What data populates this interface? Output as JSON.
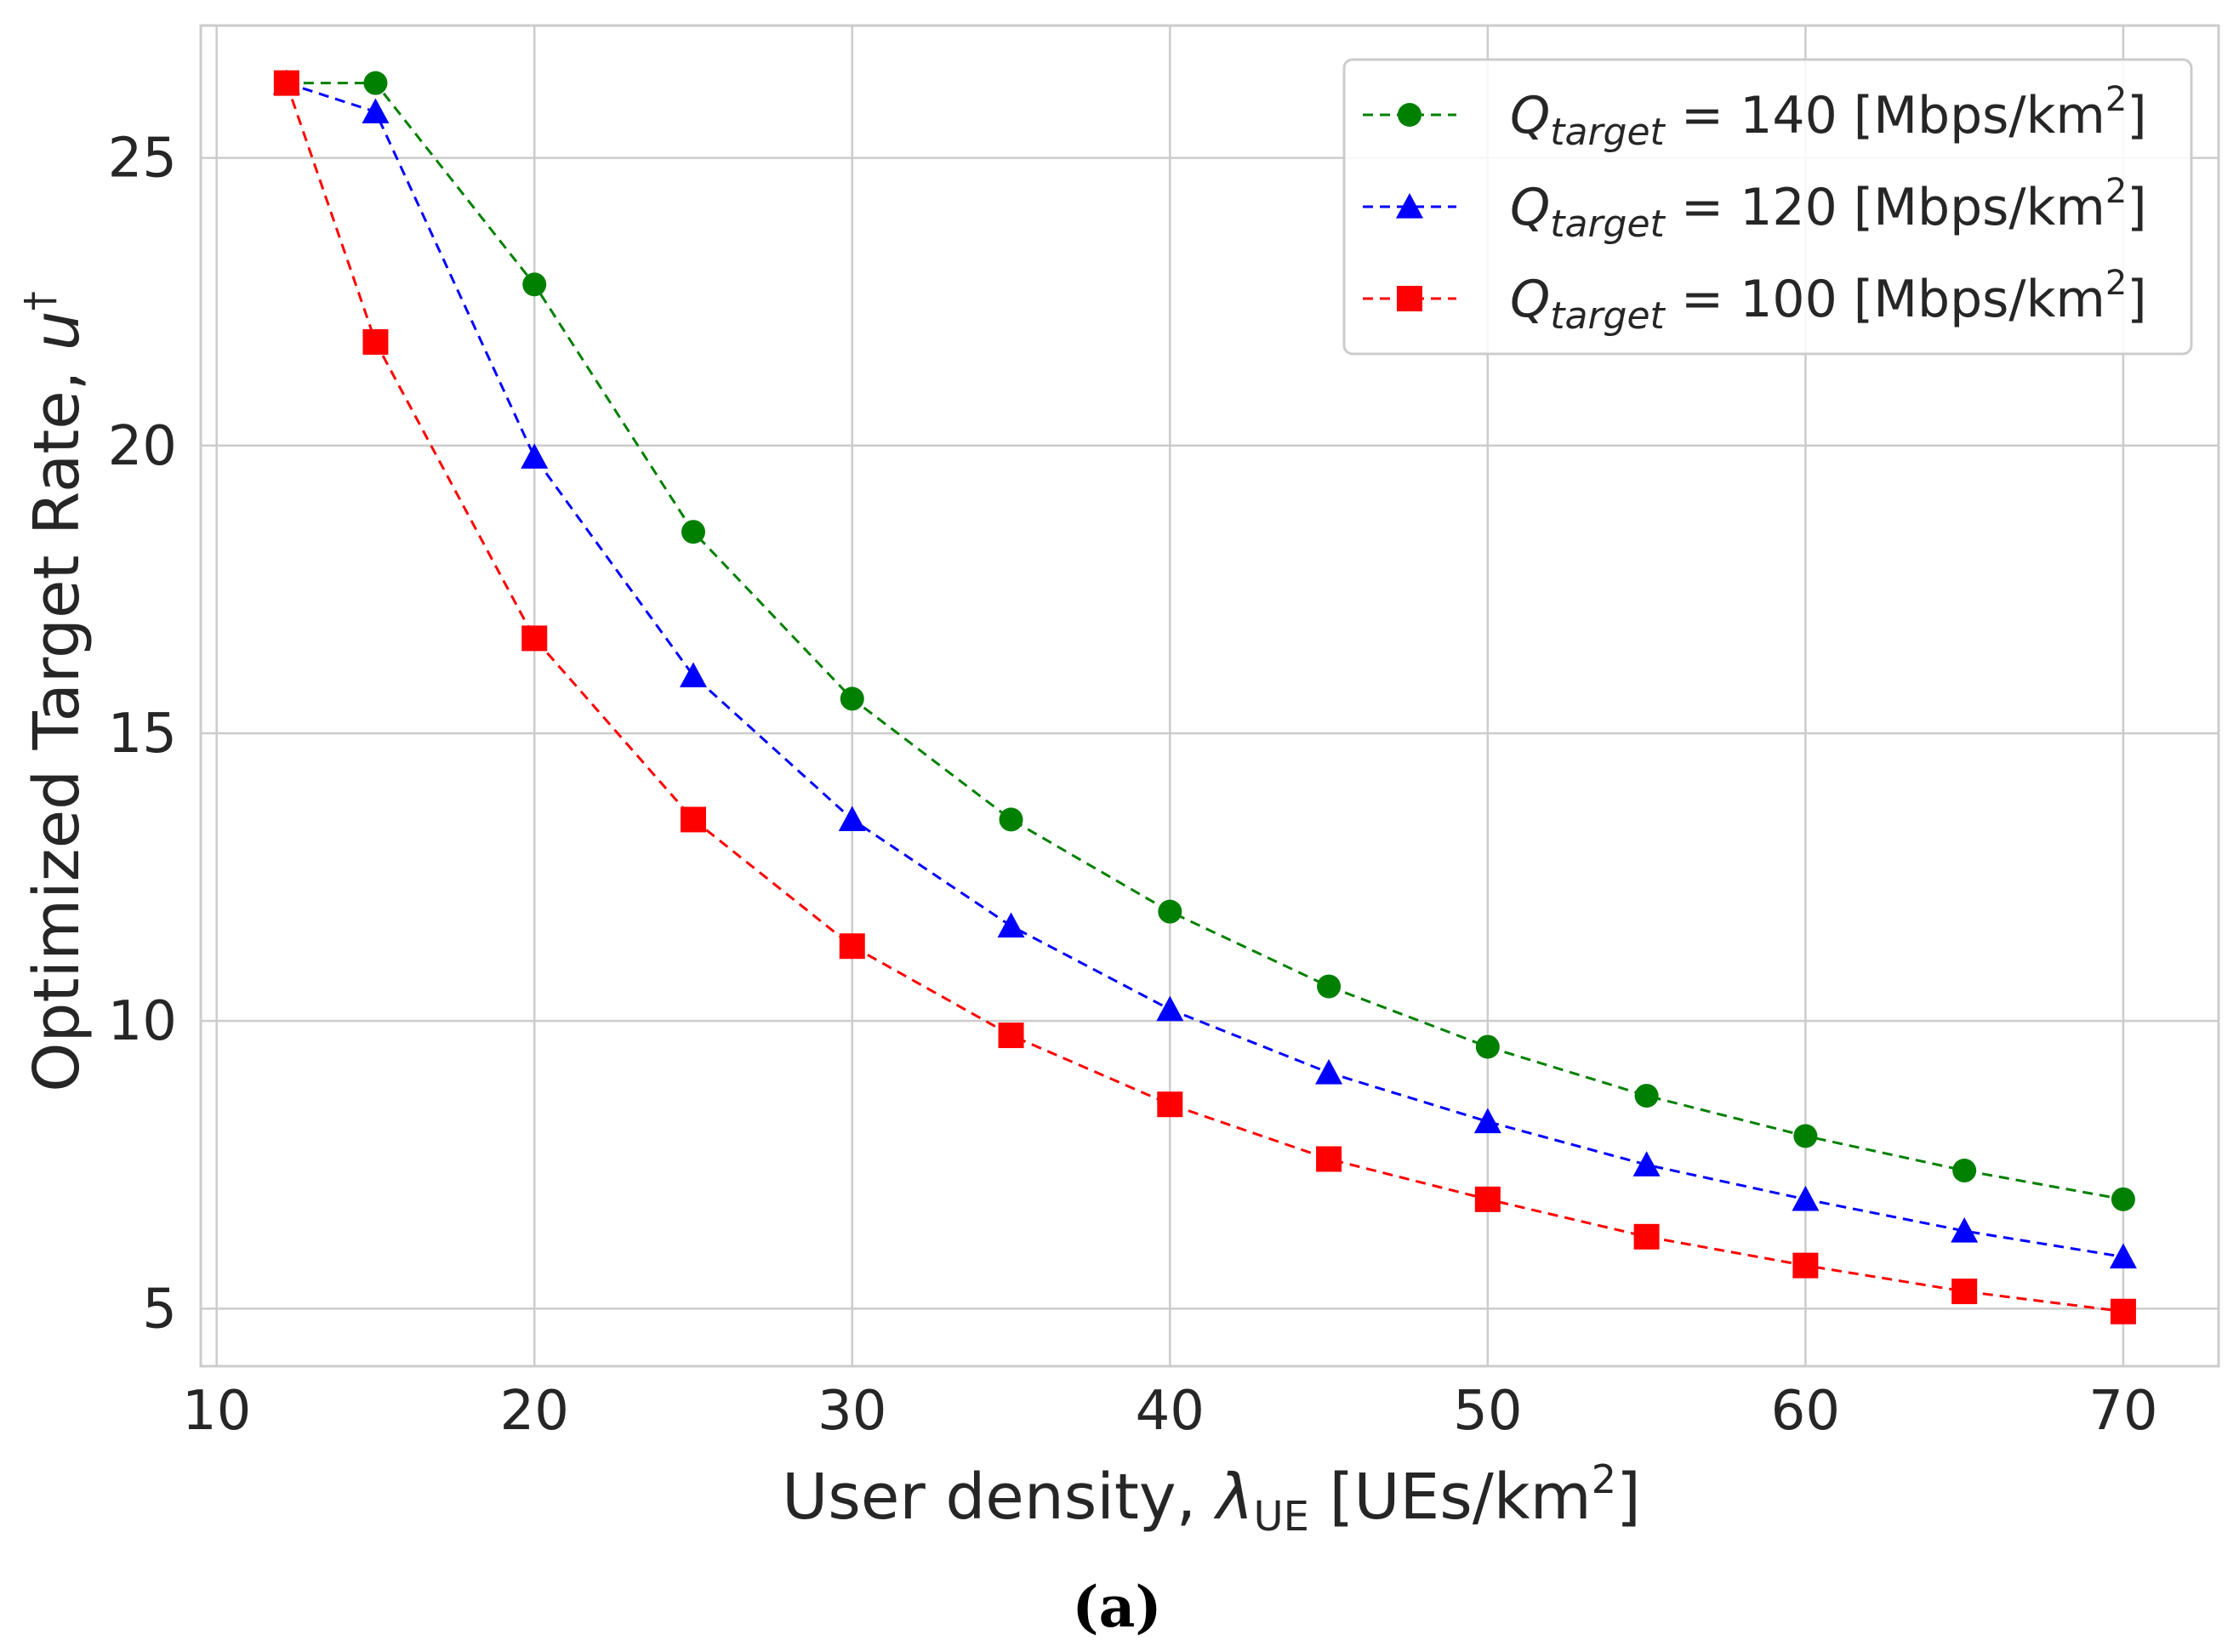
{
  "chart_data": {
    "type": "line",
    "xlabel": "User density, λUE [UEs/km2]",
    "xlabel_parts": {
      "main": "User density, ",
      "symbol": "λ",
      "subscript": "UE",
      "units_open": " [UEs/km",
      "units_sup": "2",
      "units_close": "]"
    },
    "ylabel": "Optimized Target Rate, u†",
    "ylabel_parts": {
      "main": "Optimized Target Rate, ",
      "symbol": "u",
      "sup": "†"
    },
    "xlim": [
      9.5,
      73
    ],
    "ylim": [
      4,
      27.3
    ],
    "xticks": [
      10,
      20,
      30,
      40,
      50,
      60,
      70
    ],
    "xtick_labels": [
      "10",
      "20",
      "30",
      "40",
      "50",
      "60",
      "70"
    ],
    "yticks": [
      5,
      10,
      15,
      20,
      25
    ],
    "ytick_labels": [
      "5",
      "10",
      "15",
      "20",
      "25"
    ],
    "grid": true,
    "legend_position": "top-right",
    "caption": "(a)",
    "x": [
      12.2,
      15,
      20,
      25,
      30,
      35,
      40,
      45,
      50,
      55,
      60,
      65,
      70
    ],
    "series": [
      {
        "name": "Qtarget = 140 [Mbps/km2]",
        "label_symbol": "Q",
        "label_sub": "target",
        "label_value": " = 140 [Mbps/km",
        "label_sup": "2",
        "label_close": "]",
        "color": "#008000",
        "marker": "circle",
        "values": [
          26.3,
          26.3,
          22.8,
          18.5,
          15.6,
          13.5,
          11.9,
          10.6,
          9.55,
          8.7,
          8.0,
          7.4,
          6.9
        ]
      },
      {
        "name": "Qtarget = 120 [Mbps/km2]",
        "label_symbol": "Q",
        "label_sub": "target",
        "label_value": " = 120 [Mbps/km",
        "label_sup": "2",
        "label_close": "]",
        "color": "#0000ff",
        "marker": "triangle",
        "values": [
          26.3,
          25.8,
          19.8,
          16.0,
          13.5,
          11.65,
          10.2,
          9.1,
          8.25,
          7.5,
          6.9,
          6.35,
          5.9
        ]
      },
      {
        "name": "Qtarget = 100 [Mbps/km2]",
        "label_symbol": "Q",
        "label_sub": "target",
        "label_value": " = 100 [Mbps/km",
        "label_sup": "2",
        "label_close": "]",
        "color": "#ff0000",
        "marker": "square",
        "values": [
          26.3,
          21.8,
          16.65,
          13.5,
          11.3,
          9.75,
          8.55,
          7.6,
          6.9,
          6.25,
          5.75,
          5.3,
          4.95
        ]
      }
    ]
  }
}
